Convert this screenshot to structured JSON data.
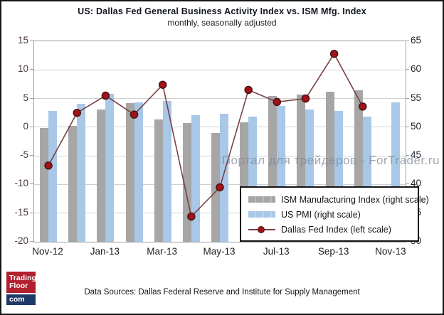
{
  "title": "US: Dallas Fed General Business Activity Index vs. ISM Mfg. Index",
  "subtitle": "monthly, seasonally adjusted",
  "watermark": "Портал для трейдеров - ForTrader.ru",
  "footer": "Data Sources: Dallas Federal Reserve and Institute for Supply Management",
  "logo": {
    "line1": "Trading",
    "line2": "Floor",
    "line3": "com"
  },
  "legend": [
    {
      "label": "ISM Manufacturing Index (right scale)",
      "swatch": "gray"
    },
    {
      "label": "US PMI (right scale)",
      "swatch": "blue"
    },
    {
      "label": "Dallas Fed Index (left scale)",
      "swatch": "line"
    }
  ],
  "colors": {
    "ism_bar": "#a6a6a6",
    "pmi_bar": "#a9c7e7",
    "dallas_line": "#7a4140",
    "dallas_marker_fill": "#a11318",
    "dallas_marker_edge": "#4a1214",
    "gridline": "#cdd1d4",
    "plot_border": "#9aa0a4",
    "left_axis_text": "#4c393b",
    "right_axis_text": "#20242c"
  },
  "chart_data": {
    "type": "bar",
    "subtype": "combo-dual-axis",
    "categories": [
      "Nov-12",
      "Dec-12",
      "Jan-13",
      "Feb-13",
      "Mar-13",
      "Apr-13",
      "May-13",
      "Jun-13",
      "Jul-13",
      "Aug-13",
      "Sep-13",
      "Oct-13",
      "Nov-13"
    ],
    "x_tick_labels": [
      "Nov-12",
      "Jan-13",
      "Mar-13",
      "May-13",
      "Jul-13",
      "Sep-13",
      "Nov-13"
    ],
    "left_axis": {
      "label": "",
      "min": -20,
      "max": 15,
      "step": 5,
      "ticks": [
        15,
        10,
        5,
        0,
        -5,
        -10,
        -15,
        -20
      ]
    },
    "right_axis": {
      "label": "",
      "min": 30,
      "max": 65,
      "step": 5,
      "ticks": [
        65,
        60,
        55,
        50,
        45,
        40,
        35,
        30
      ]
    },
    "grid": true,
    "legend_position": "bottom-right-inside",
    "series": [
      {
        "name": "ISM Manufacturing Index",
        "key": "ism",
        "type": "bar",
        "axis": "right",
        "values": [
          49.9,
          50.2,
          53.1,
          54.2,
          51.3,
          50.7,
          49.0,
          50.9,
          55.4,
          55.7,
          56.2,
          56.4,
          null
        ]
      },
      {
        "name": "US PMI",
        "key": "pmi",
        "type": "bar",
        "axis": "right",
        "values": [
          52.8,
          54.1,
          55.8,
          54.3,
          54.6,
          52.1,
          52.3,
          51.9,
          53.7,
          53.1,
          52.8,
          51.8,
          54.3
        ]
      },
      {
        "name": "Dallas Fed Index",
        "key": "dallas",
        "type": "line",
        "axis": "left",
        "values": [
          -6.7,
          2.5,
          5.5,
          2.2,
          7.4,
          -15.6,
          -10.5,
          6.5,
          4.4,
          5.0,
          12.8,
          3.6,
          null
        ]
      }
    ]
  }
}
